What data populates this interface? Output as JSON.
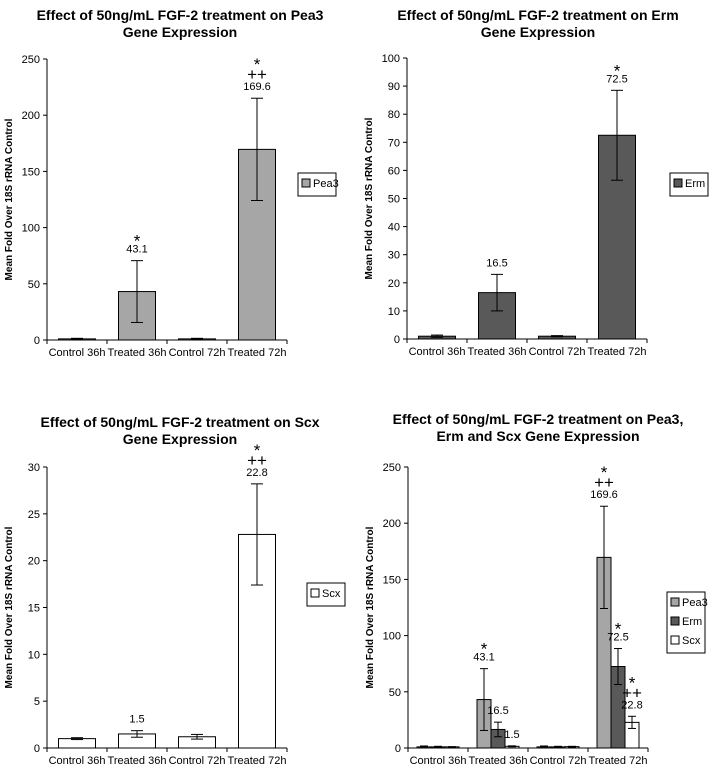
{
  "colors": {
    "Pea3": "#a6a6a6",
    "Erm": "#595959",
    "Scx": "#ffffff",
    "stroke": "#000000"
  },
  "chart_data": [
    {
      "type": "bar",
      "title": "Effect of 50ng/mL FGF-2 treatment on Pea3 Gene Expression",
      "title_lines": [
        "Effect of 50ng/mL FGF-2 treatment on Pea3",
        "Gene Expression"
      ],
      "xlabel": "",
      "ylabel": "Mean Fold Over 18S rRNA Control",
      "categories": [
        "Control 36h",
        "Treated 36h",
        "Control 72h",
        "Treated 72h"
      ],
      "ylim": [
        0,
        250
      ],
      "yticks": [
        0,
        50,
        100,
        150,
        200,
        250
      ],
      "legend": "right",
      "series": [
        {
          "name": "Pea3",
          "values": [
            1,
            43.1,
            1,
            169.6
          ],
          "errors": [
            0.5,
            27.5,
            0.5,
            45.5
          ],
          "labels": [
            "",
            "43.1",
            "",
            "169.6"
          ],
          "marks": [
            [],
            [
              "*"
            ],
            [],
            [
              "*",
              "++"
            ]
          ]
        }
      ]
    },
    {
      "type": "bar",
      "title": "Effect of 50ng/mL FGF-2 treatment on Erm Gene Expression",
      "title_lines": [
        "Effect of 50ng/mL FGF-2 treatment on Erm",
        "Gene Expression"
      ],
      "xlabel": "",
      "ylabel": "Mean Fold Over 18S rRNA Control",
      "categories": [
        "Control 36h",
        "Treated 36h",
        "Control 72h",
        "Treated 72h"
      ],
      "ylim": [
        0,
        100
      ],
      "yticks": [
        0,
        10,
        20,
        30,
        40,
        50,
        60,
        70,
        80,
        90,
        100
      ],
      "legend": "right",
      "series": [
        {
          "name": "Erm",
          "values": [
            1,
            16.5,
            1,
            72.5
          ],
          "errors": [
            0.4,
            6.5,
            0.2,
            16
          ],
          "labels": [
            "",
            "16.5",
            "",
            "72.5"
          ],
          "marks": [
            [],
            [],
            [],
            [
              "*"
            ]
          ]
        }
      ]
    },
    {
      "type": "bar",
      "title": "Effect of 50ng/mL FGF-2 treatment on Scx Gene Expression",
      "title_lines": [
        "Effect of 50ng/mL FGF-2 treatment on Scx",
        "Gene Expression"
      ],
      "xlabel": "",
      "ylabel": "Mean Fold Over 18S rRNA Control",
      "categories": [
        "Control 36h",
        "Treated 36h",
        "Control 72h",
        "Treated 72h"
      ],
      "ylim": [
        0,
        30
      ],
      "yticks": [
        0,
        5,
        10,
        15,
        20,
        25,
        30
      ],
      "legend": "right",
      "series": [
        {
          "name": "Scx",
          "values": [
            1,
            1.5,
            1.2,
            22.8
          ],
          "errors": [
            0.1,
            0.35,
            0.25,
            5.4
          ],
          "labels": [
            "",
            "1.5",
            "",
            "22.8"
          ],
          "marks": [
            [],
            [],
            [],
            [
              "*",
              "++"
            ]
          ]
        }
      ]
    },
    {
      "type": "bar",
      "title": "Effect of 50ng/mL FGF-2 treatment on Pea3, Erm and Scx Gene Expression",
      "title_lines": [
        "Effect of 50ng/mL FGF-2 treatment on Pea3,",
        "Erm and Scx Gene Expression"
      ],
      "xlabel": "",
      "ylabel": "Mean Fold Over 18S rRNA Control",
      "categories": [
        "Control 36h",
        "Treated 36h",
        "Control 72h",
        "Treated 72h"
      ],
      "ylim": [
        0,
        250
      ],
      "yticks": [
        0,
        50,
        100,
        150,
        200,
        250
      ],
      "legend": "right",
      "series": [
        {
          "name": "Pea3",
          "values": [
            1,
            43.1,
            1,
            169.6
          ],
          "errors": [
            0.8,
            27.5,
            0.8,
            45.5
          ],
          "labels": [
            "",
            "43.1",
            "",
            "169.6"
          ],
          "marks": [
            [],
            [
              "*"
            ],
            [],
            [
              "*",
              "++"
            ]
          ]
        },
        {
          "name": "Erm",
          "values": [
            1,
            16.5,
            1,
            72.5
          ],
          "errors": [
            0.5,
            6.5,
            0.5,
            16
          ],
          "labels": [
            "",
            "16.5",
            "",
            "72.5"
          ],
          "marks": [
            [],
            [],
            [],
            [
              "*"
            ]
          ]
        },
        {
          "name": "Scx",
          "values": [
            1,
            1.5,
            1.2,
            22.8
          ],
          "errors": [
            0.2,
            0.4,
            0.3,
            5.4
          ],
          "labels": [
            "",
            "1.5",
            "",
            "22.8"
          ],
          "marks": [
            [],
            [],
            [],
            [
              "*",
              "++"
            ]
          ]
        }
      ]
    }
  ]
}
